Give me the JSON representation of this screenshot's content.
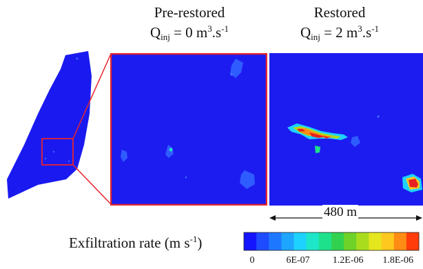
{
  "panels": {
    "pre_restored": {
      "title": "Pre-restored",
      "q_prefix": "Q",
      "q_sub": "inj",
      "q_value": " = 0 m",
      "q_sup": "3",
      "q_unit": ".s",
      "q_unit_sup": "-1"
    },
    "restored": {
      "title": "Restored",
      "q_prefix": "Q",
      "q_sub": "inj",
      "q_value": " = 2 m",
      "q_sup": "3",
      "q_unit": ".s",
      "q_unit_sup": "-1"
    }
  },
  "scale_bar": {
    "label": "480 m"
  },
  "colorbar": {
    "label_text": "Exfiltration rate (m s",
    "label_sup": "-1",
    "label_close": ")",
    "colors": [
      "#1414ff",
      "#1e4bff",
      "#1e78ff",
      "#1ea5ff",
      "#1ed2ff",
      "#1ee6c8",
      "#1ee18c",
      "#32d250",
      "#6ed228",
      "#aadc1e",
      "#e6e61e",
      "#ffc81e",
      "#ff8c14",
      "#ff3c0a"
    ],
    "ticks": [
      "0",
      "6E-07",
      "1.2E-06",
      "1.8E-06"
    ]
  },
  "colors": {
    "field_blue": "#1c1cf0",
    "highlight_red": "#e8242c"
  }
}
